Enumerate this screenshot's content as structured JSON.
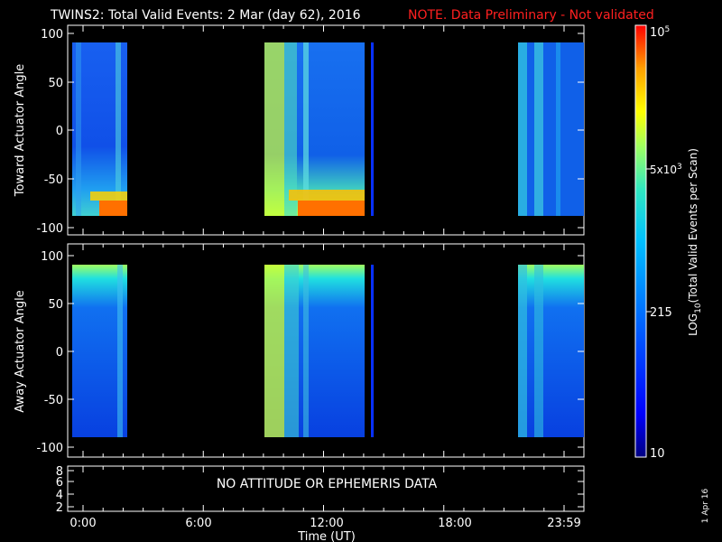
{
  "title": {
    "main": "TWINS2: Total Valid Events:  2 Mar (day  62), 2016",
    "note": "NOTE. Data Preliminary - Not validated",
    "note_color": "#ff2020"
  },
  "panels": {
    "top_ylabel": "Toward Actuator Angle",
    "bottom_ylabel": "Away Actuator Angle",
    "angle_ticks": [
      "100",
      "50",
      "0",
      "-50",
      "-100"
    ],
    "aux_ticks": [
      "8",
      "6",
      "4",
      "2"
    ],
    "aux_message": "NO ATTITUDE OR EPHEMERIS DATA"
  },
  "xaxis": {
    "label": "Time (UT)",
    "ticks": [
      "0:00",
      "6:00",
      "12:00",
      "18:00",
      "23:59"
    ]
  },
  "colorbar": {
    "label_main": "LOG",
    "label_sub": "10",
    "label_rest": "(Total Valid Events per Scan)",
    "tick_max": "10",
    "tick_max_exp": "5",
    "tick_mid_base": "5x10",
    "tick_mid_exp": "3",
    "tick_215": "215",
    "tick_min": "10",
    "colors": [
      "#000080",
      "#0000ff",
      "#0080ff",
      "#00c0ff",
      "#20e0d0",
      "#80ff80",
      "#ffff00",
      "#ffa000",
      "#ff3000",
      "#ff0000"
    ]
  },
  "footer_date": "1 Apr 16",
  "chart_data": [
    {
      "type": "heatmap",
      "title": "",
      "ylabel": "Toward Actuator Angle",
      "xlabel": "",
      "xlim_hours": [
        0,
        24
      ],
      "ylim": [
        -110,
        110
      ],
      "data_yrange": [
        -90,
        90
      ],
      "data_intervals_hours": [
        [
          0.0,
          2.5
        ],
        [
          9.1,
          13.8
        ],
        [
          14.05,
          14.15
        ],
        [
          21.0,
          24.0
        ]
      ],
      "notes": "High counts (orange/red, ~1e4-1e5) near -90 deg at end of first two intervals; mostly blue/cyan (~200-1000) elsewhere"
    },
    {
      "type": "heatmap",
      "title": "",
      "ylabel": "Away Actuator Angle",
      "xlabel": "Time (UT)",
      "xlim_hours": [
        0,
        24
      ],
      "ylim": [
        -110,
        110
      ],
      "data_yrange": [
        -90,
        90
      ],
      "data_intervals_hours": [
        [
          0.0,
          2.5
        ],
        [
          9.1,
          13.8
        ],
        [
          14.05,
          14.15
        ],
        [
          21.0,
          24.0
        ]
      ],
      "notes": "Enhanced counts (cyan/yellow) near +90 deg; mostly blue elsewhere"
    }
  ]
}
